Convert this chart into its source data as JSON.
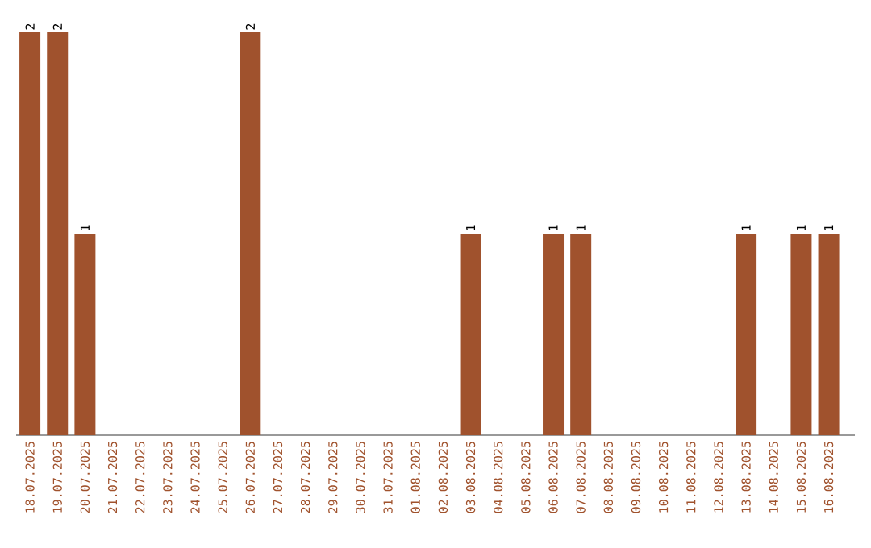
{
  "chart_data": {
    "type": "bar",
    "categories": [
      "18.07.2025",
      "19.07.2025",
      "20.07.2025",
      "21.07.2025",
      "22.07.2025",
      "23.07.2025",
      "24.07.2025",
      "25.07.2025",
      "26.07.2025",
      "27.07.2025",
      "28.07.2025",
      "29.07.2025",
      "30.07.2025",
      "31.07.2025",
      "01.08.2025",
      "02.08.2025",
      "03.08.2025",
      "04.08.2025",
      "05.08.2025",
      "06.08.2025",
      "07.08.2025",
      "08.08.2025",
      "09.08.2025",
      "10.08.2025",
      "11.08.2025",
      "12.08.2025",
      "13.08.2025",
      "14.08.2025",
      "15.08.2025",
      "16.08.2025"
    ],
    "values": [
      2,
      2,
      1,
      0,
      0,
      0,
      0,
      0,
      2,
      0,
      0,
      0,
      0,
      0,
      0,
      0,
      1,
      0,
      0,
      1,
      1,
      0,
      0,
      0,
      0,
      0,
      1,
      0,
      1,
      1
    ],
    "value_labels": [
      "2",
      "2",
      "1",
      null,
      null,
      null,
      null,
      null,
      "2",
      null,
      null,
      null,
      null,
      null,
      null,
      null,
      "1",
      null,
      null,
      "1",
      "1",
      null,
      null,
      null,
      null,
      null,
      "1",
      null,
      "1",
      "1"
    ],
    "color": "#a0522d"
  }
}
